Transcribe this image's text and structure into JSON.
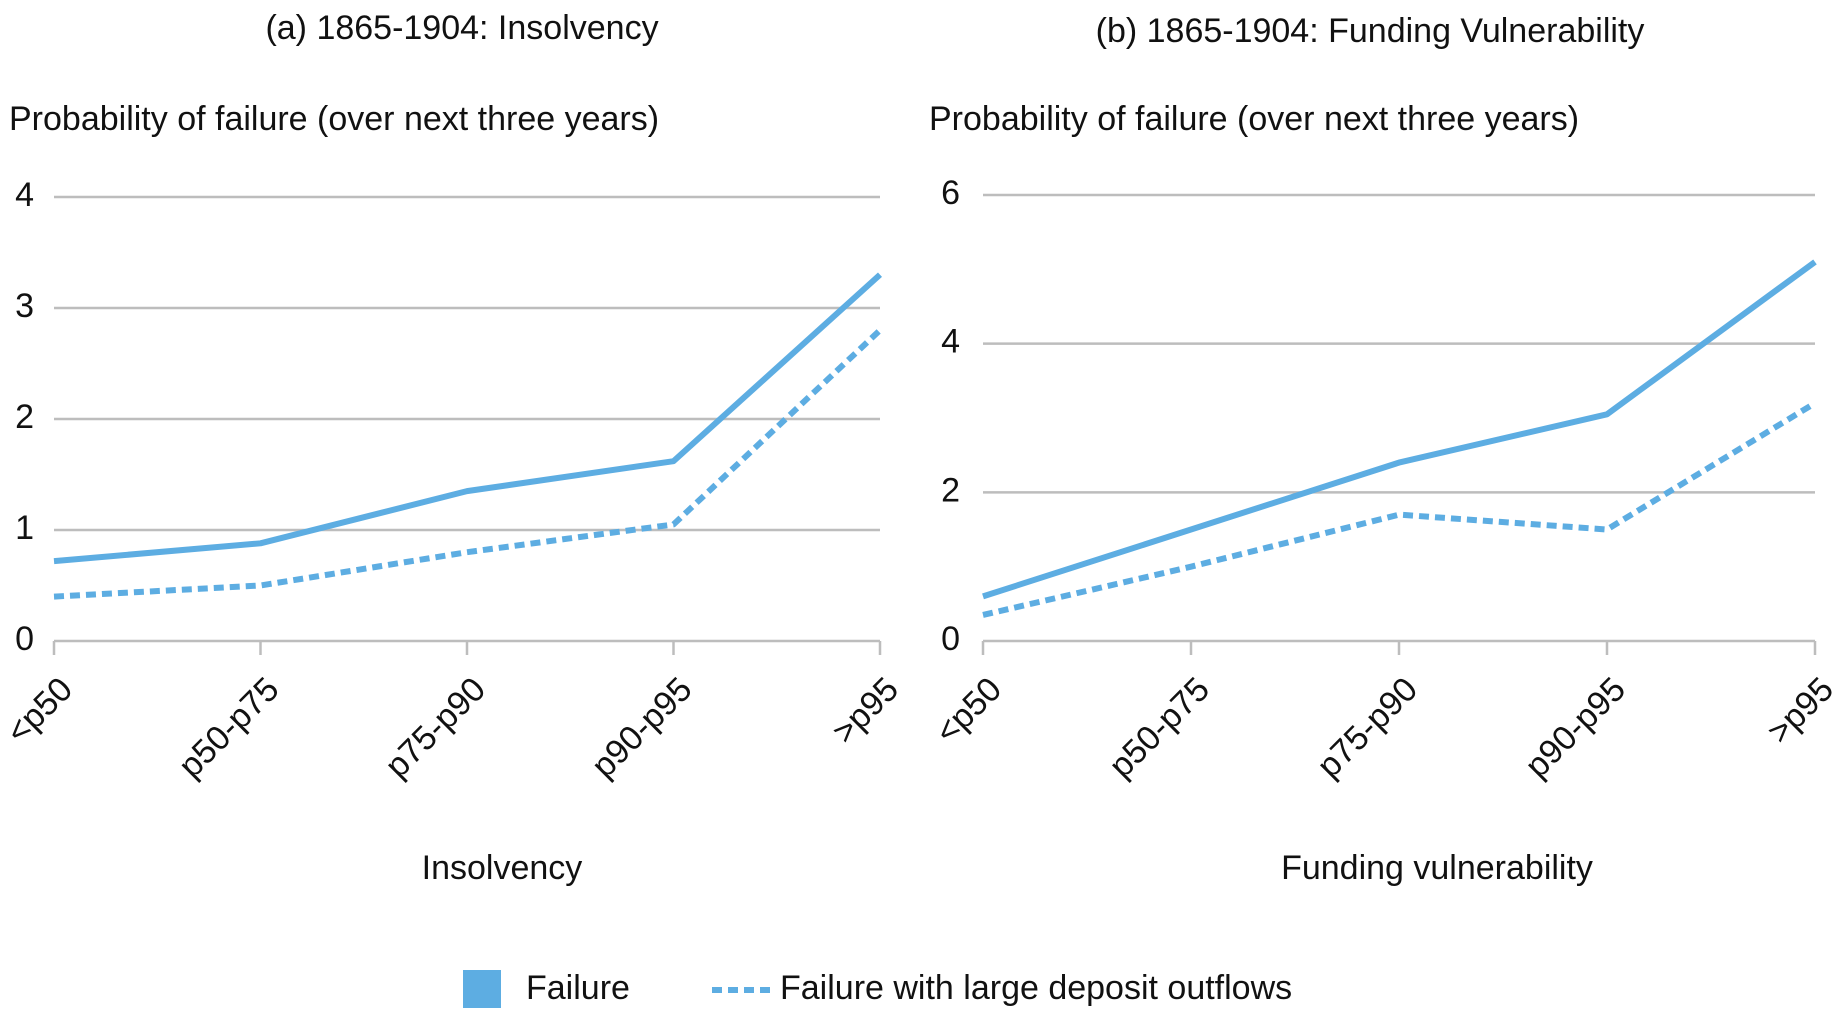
{
  "chart_data": [
    {
      "type": "line",
      "title": "(a) 1865-1904: Insolvency",
      "y_label": "Probability of failure (over next three years)",
      "x_label": "Insolvency",
      "categories": [
        "<p50",
        "p50-p75",
        "p75-p90",
        "p90-p95",
        ">p95"
      ],
      "ylim": [
        0,
        4
      ],
      "yticks": [
        0,
        1,
        2,
        3,
        4
      ],
      "grid": true,
      "series": [
        {
          "name": "Failure",
          "color": "#5dade2",
          "dash": false,
          "values": [
            0.72,
            0.88,
            1.35,
            1.62,
            3.3
          ]
        },
        {
          "name": "Failure with large deposit outflows",
          "color": "#5dade2",
          "dash": true,
          "values": [
            0.4,
            0.5,
            0.8,
            1.05,
            2.8
          ]
        }
      ]
    },
    {
      "type": "line",
      "title": "(b) 1865-1904: Funding Vulnerability",
      "y_label": "Probability of failure (over next three years)",
      "x_label": "Funding vulnerability",
      "categories": [
        "<p50",
        "p50-p75",
        "p75-p90",
        "p90-p95",
        ">p95"
      ],
      "ylim": [
        0,
        6
      ],
      "yticks": [
        0,
        2,
        4,
        6
      ],
      "grid": true,
      "series": [
        {
          "color": "#5dade2",
          "dash": false,
          "values": [
            0.6,
            1.5,
            2.4,
            3.05,
            5.1
          ]
        },
        {
          "color": "#5dade2",
          "dash": true,
          "values": [
            0.35,
            1.0,
            1.7,
            1.5,
            3.2
          ]
        }
      ]
    }
  ]
}
